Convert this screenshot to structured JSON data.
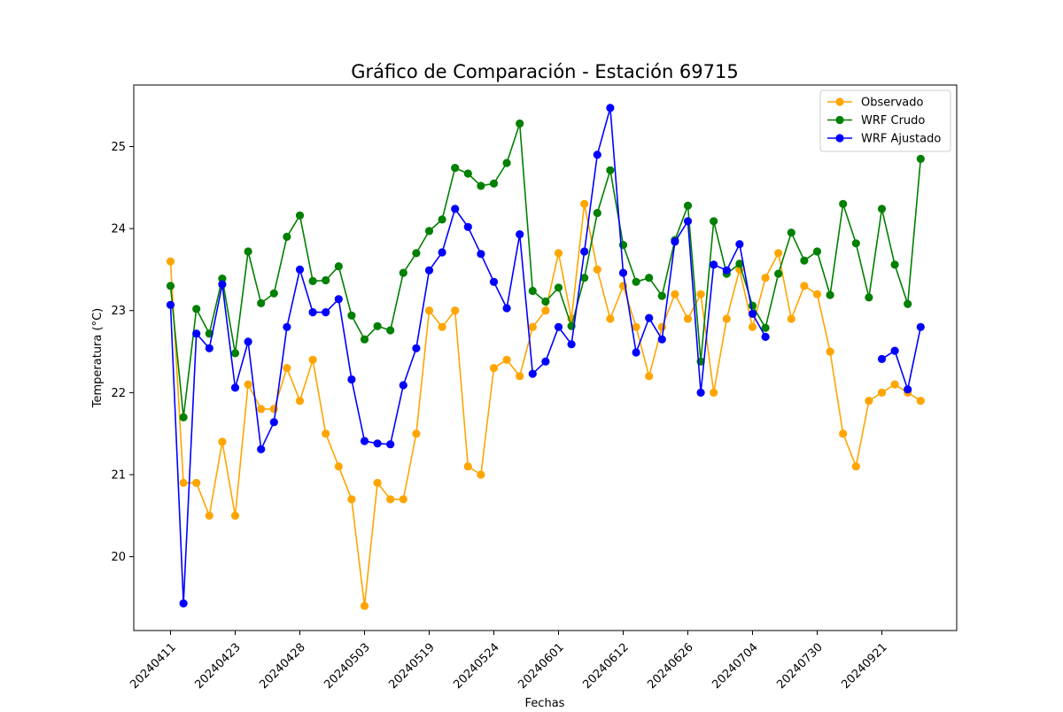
{
  "chart_data": {
    "type": "line",
    "title": "Gráfico de Comparación - Estación 69715",
    "xlabel": "Fechas",
    "ylabel": "Temperatura (°C)",
    "xtick_labels": [
      "20240411",
      "20240423",
      "20240428",
      "20240503",
      "20240519",
      "20240524",
      "20240601",
      "20240612",
      "20240626",
      "20240704",
      "20240730",
      "20240921"
    ],
    "yticks": [
      20,
      21,
      22,
      23,
      24,
      25
    ],
    "ylim": [
      19.1,
      25.75
    ],
    "legend_position": "upper right",
    "grid": false,
    "series": [
      {
        "name": "Observado",
        "color": "#ffa500",
        "values": [
          23.6,
          20.9,
          20.9,
          20.5,
          21.4,
          20.5,
          22.1,
          21.8,
          21.8,
          22.3,
          21.9,
          22.4,
          21.5,
          21.1,
          20.7,
          19.4,
          20.9,
          20.7,
          20.7,
          21.5,
          23.0,
          22.8,
          23.0,
          21.1,
          21.0,
          22.3,
          22.4,
          22.2,
          22.8,
          23.0,
          23.7,
          22.9,
          24.3,
          23.5,
          22.9,
          23.3,
          22.8,
          22.2,
          22.8,
          23.2,
          22.9,
          23.2,
          22.0,
          22.9,
          23.5,
          22.8,
          23.4,
          23.7,
          22.9,
          23.3,
          23.2,
          22.5,
          21.5,
          21.1,
          21.9,
          22.0,
          22.1,
          22.0,
          21.9
        ]
      },
      {
        "name": "WRF Crudo",
        "color": "#008000",
        "values": [
          23.3,
          21.7,
          23.02,
          22.72,
          23.39,
          22.48,
          23.72,
          23.09,
          23.21,
          23.9,
          24.16,
          23.36,
          23.37,
          23.54,
          22.94,
          22.65,
          22.81,
          22.76,
          23.46,
          23.7,
          23.97,
          24.11,
          24.74,
          24.67,
          24.52,
          24.55,
          24.8,
          25.28,
          23.24,
          23.11,
          23.28,
          22.81,
          23.4,
          24.19,
          24.71,
          23.8,
          23.35,
          23.4,
          23.18,
          23.86,
          24.28,
          22.38,
          24.09,
          23.45,
          23.57,
          23.06,
          22.79,
          23.45,
          23.95,
          23.61,
          23.72,
          23.19,
          24.3,
          23.82,
          23.16,
          24.24,
          23.56,
          23.08,
          24.85
        ]
      },
      {
        "name": "WRF Ajustado",
        "color": "#0000ff",
        "values": [
          23.07,
          19.43,
          22.72,
          22.54,
          23.32,
          22.06,
          22.62,
          21.31,
          21.64,
          22.8,
          23.5,
          22.98,
          22.98,
          23.14,
          22.16,
          21.41,
          21.38,
          21.37,
          22.09,
          22.54,
          23.49,
          23.71,
          24.24,
          24.02,
          23.69,
          23.35,
          23.03,
          23.93,
          22.23,
          22.38,
          22.8,
          22.59,
          23.72,
          24.9,
          25.47,
          23.46,
          22.49,
          22.91,
          22.65,
          23.84,
          24.09,
          22.0,
          23.56,
          23.49,
          23.81,
          22.96,
          22.68,
          null,
          null,
          null,
          null,
          null,
          null,
          null,
          null,
          22.41,
          22.51,
          22.04,
          22.8
        ]
      }
    ]
  }
}
